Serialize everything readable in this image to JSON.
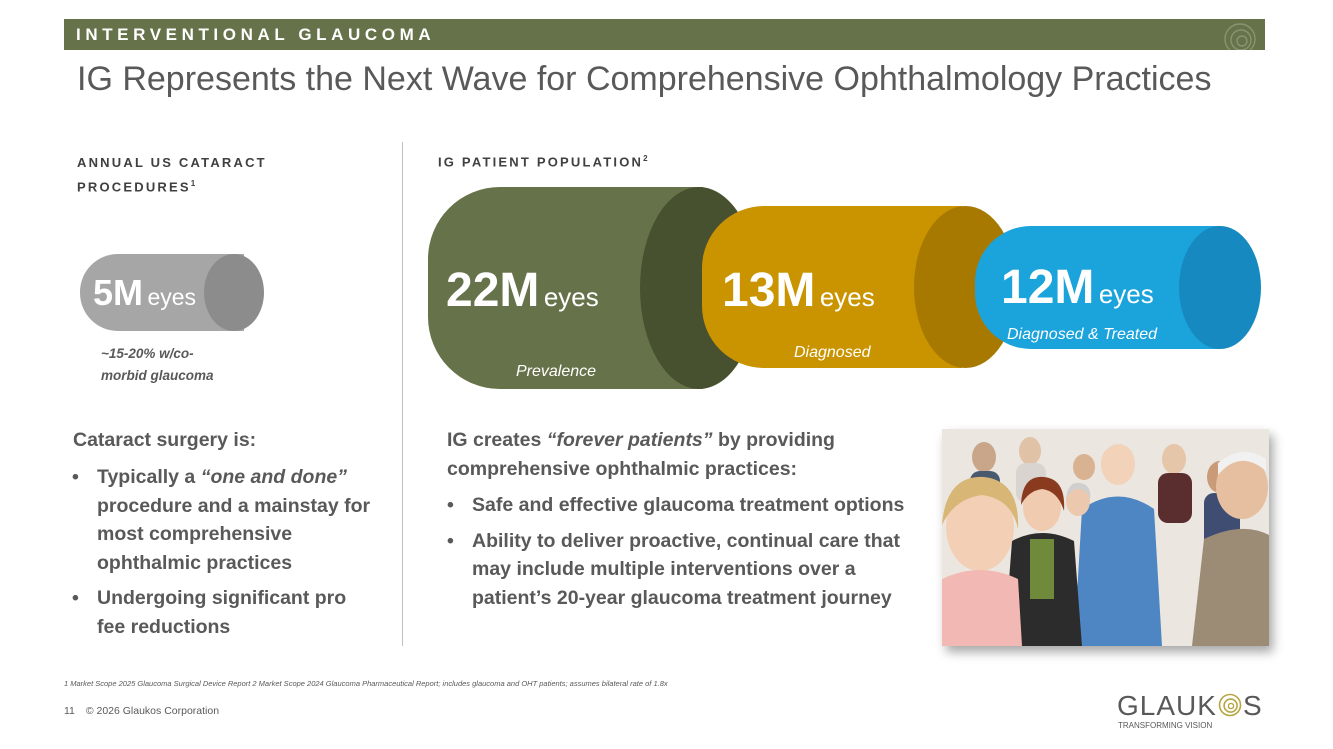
{
  "banner": {
    "text": "INTERVENTIONAL GLAUCOMA",
    "color": "#66734a"
  },
  "title": "IG Represents the Next Wave for Comprehensive Ophthalmology Practices",
  "left": {
    "label_line1": "ANNUAL US CATARACT",
    "label_line2": "PROCEDURES",
    "label_sup": "1",
    "cylinder": {
      "value": "5M",
      "unit": "eyes",
      "color": "#a6a6a6"
    },
    "note_line1": "~15-20% w/co-",
    "note_line2": "morbid glaucoma",
    "heading": "Cataract surgery is:",
    "bullets": [
      {
        "pre": "Typically a ",
        "em": "“one and done”",
        "post": " procedure and a mainstay for most comprehensive ophthalmic practices"
      },
      {
        "pre": "Undergoing significant pro fee reductions",
        "em": "",
        "post": ""
      }
    ]
  },
  "right": {
    "label": "IG PATIENT POPULATION",
    "label_sup": "2",
    "cylinders": [
      {
        "value": "22M",
        "unit": "eyes",
        "caption": "Prevalence",
        "color": "#66734a",
        "cap_color": "#48512f"
      },
      {
        "value": "13M",
        "unit": "eyes",
        "caption": "Diagnosed",
        "color": "#c99400",
        "cap_color": "#a77900"
      },
      {
        "value": "12M",
        "unit": "eyes",
        "caption": "Diagnosed & Treated",
        "color": "#1ba3dc",
        "cap_color": "#168ac0"
      }
    ],
    "heading_pre": "IG creates ",
    "heading_em": "“forever patients”",
    "heading_post": " by providing comprehensive ophthalmic practices:",
    "bullets": [
      "Safe and effective glaucoma treatment options",
      "Ability to deliver proactive, continual care that may include multiple interventions over a patient’s 20-year glaucoma treatment journey"
    ]
  },
  "bullet_glyph": "•",
  "footnote": "1 Market Scope 2025 Glaucoma Surgical Device Report  2 Market Scope 2024 Glaucoma Pharmaceutical Report; includes glaucoma and OHT patients; assumes bilateral rate of 1.8x",
  "footer": {
    "page_number": "11",
    "copyright": "© 2026 Glaukos Corporation"
  },
  "logo": {
    "word_left": "GLAUK",
    "word_right": "S",
    "tagline": "TRANSFORMING VISION",
    "mark_color": "#b5a642"
  }
}
